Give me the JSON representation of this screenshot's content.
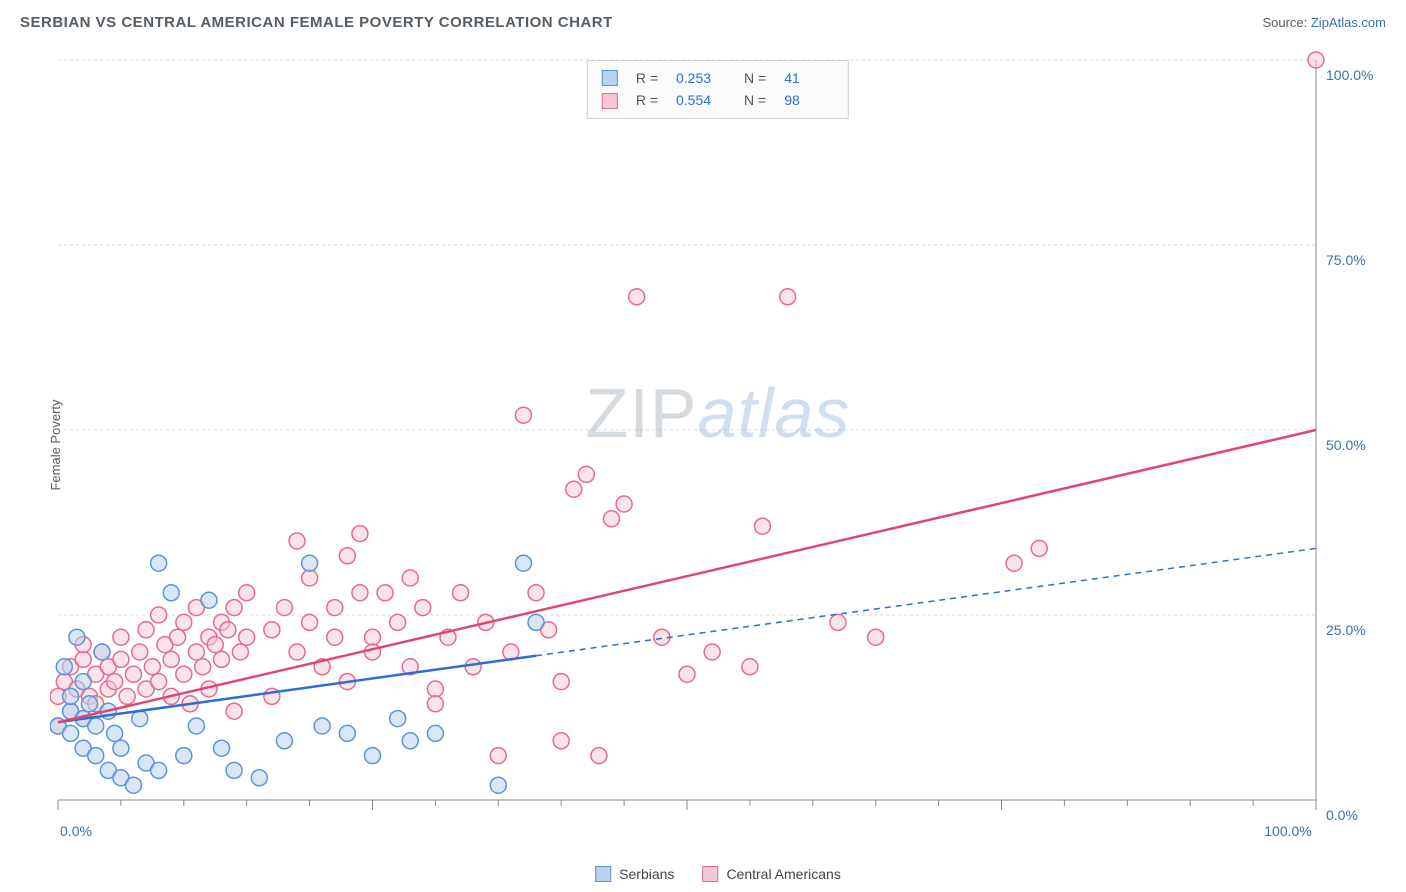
{
  "header": {
    "title": "SERBIAN VS CENTRAL AMERICAN FEMALE POVERTY CORRELATION CHART",
    "source_prefix": "Source: ",
    "source_link": "ZipAtlas.com"
  },
  "chart": {
    "type": "scatter",
    "ylabel": "Female Poverty",
    "watermark_zip": "ZIP",
    "watermark_atlas": "atlas",
    "xlim": [
      0,
      100
    ],
    "ylim": [
      0,
      100
    ],
    "xticks_major": [
      0,
      25,
      50,
      75,
      100
    ],
    "xticks_minor_step": 5,
    "yticks": [
      0,
      25,
      50,
      75,
      100
    ],
    "ytick_labels": [
      "0.0%",
      "25.0%",
      "50.0%",
      "75.0%",
      "100.0%"
    ],
    "xtick_labels_shown": {
      "0": "0.0%",
      "100": "100.0%"
    },
    "background_color": "#ffffff",
    "grid_color": "#d8d8d8",
    "grid_dash": "3,3",
    "axis_color": "#888888",
    "tick_label_color": "#3a6fb0",
    "marker_radius": 8,
    "marker_stroke_width": 1.5,
    "series": {
      "serbians": {
        "name": "Serbians",
        "fill": "#b9d2ef",
        "stroke": "#5a95d8",
        "fill_opacity": 0.55,
        "R": "0.253",
        "N": "41",
        "regression": {
          "x1": 0,
          "y1": 10.5,
          "x2": 38,
          "y2": 19.5,
          "extend_to_x": 100,
          "extend_y": 34,
          "color": "#2e6cd6",
          "width": 2.5,
          "dash_after": true
        },
        "points": [
          [
            0,
            10
          ],
          [
            0.5,
            18
          ],
          [
            1,
            12
          ],
          [
            1,
            14
          ],
          [
            1,
            9
          ],
          [
            1.5,
            22
          ],
          [
            2,
            11
          ],
          [
            2,
            7
          ],
          [
            2,
            16
          ],
          [
            2.5,
            13
          ],
          [
            3,
            10
          ],
          [
            3,
            6
          ],
          [
            3.5,
            20
          ],
          [
            4,
            12
          ],
          [
            4,
            4
          ],
          [
            4.5,
            9
          ],
          [
            5,
            7
          ],
          [
            5,
            3
          ],
          [
            6,
            2
          ],
          [
            6.5,
            11
          ],
          [
            7,
            5
          ],
          [
            8,
            4
          ],
          [
            8,
            32
          ],
          [
            9,
            28
          ],
          [
            10,
            6
          ],
          [
            11,
            10
          ],
          [
            12,
            27
          ],
          [
            13,
            7
          ],
          [
            14,
            4
          ],
          [
            16,
            3
          ],
          [
            18,
            8
          ],
          [
            20,
            32
          ],
          [
            21,
            10
          ],
          [
            23,
            9
          ],
          [
            25,
            6
          ],
          [
            27,
            11
          ],
          [
            28,
            8
          ],
          [
            30,
            9
          ],
          [
            35,
            2
          ],
          [
            37,
            32
          ],
          [
            38,
            24
          ]
        ]
      },
      "central_americans": {
        "name": "Central Americans",
        "fill": "#f5c7d4",
        "stroke": "#e46b8f",
        "fill_opacity": 0.5,
        "R": "0.554",
        "N": "98",
        "regression": {
          "x1": 0,
          "y1": 10.5,
          "x2": 100,
          "y2": 50,
          "color": "#e0476e",
          "width": 2.5,
          "dash_after": false
        },
        "points": [
          [
            0,
            10
          ],
          [
            0,
            14
          ],
          [
            0.5,
            16
          ],
          [
            1,
            12
          ],
          [
            1,
            18
          ],
          [
            1.5,
            15
          ],
          [
            2,
            11
          ],
          [
            2,
            19
          ],
          [
            2,
            21
          ],
          [
            2.5,
            14
          ],
          [
            3,
            17
          ],
          [
            3,
            13
          ],
          [
            3.5,
            20
          ],
          [
            4,
            15
          ],
          [
            4,
            18
          ],
          [
            4.5,
            16
          ],
          [
            5,
            19
          ],
          [
            5,
            22
          ],
          [
            5.5,
            14
          ],
          [
            6,
            17
          ],
          [
            6.5,
            20
          ],
          [
            7,
            15
          ],
          [
            7,
            23
          ],
          [
            7.5,
            18
          ],
          [
            8,
            16
          ],
          [
            8,
            25
          ],
          [
            8.5,
            21
          ],
          [
            9,
            14
          ],
          [
            9,
            19
          ],
          [
            9.5,
            22
          ],
          [
            10,
            17
          ],
          [
            10,
            24
          ],
          [
            10.5,
            13
          ],
          [
            11,
            20
          ],
          [
            11,
            26
          ],
          [
            11.5,
            18
          ],
          [
            12,
            22
          ],
          [
            12,
            15
          ],
          [
            12.5,
            21
          ],
          [
            13,
            24
          ],
          [
            13,
            19
          ],
          [
            13.5,
            23
          ],
          [
            14,
            12
          ],
          [
            14,
            26
          ],
          [
            14.5,
            20
          ],
          [
            15,
            22
          ],
          [
            15,
            28
          ],
          [
            17,
            23
          ],
          [
            17,
            14
          ],
          [
            18,
            26
          ],
          [
            19,
            20
          ],
          [
            19,
            35
          ],
          [
            20,
            24
          ],
          [
            20,
            30
          ],
          [
            21,
            18
          ],
          [
            22,
            26
          ],
          [
            22,
            22
          ],
          [
            23,
            33
          ],
          [
            23,
            16
          ],
          [
            24,
            28
          ],
          [
            24,
            36
          ],
          [
            25,
            22
          ],
          [
            25,
            20
          ],
          [
            26,
            28
          ],
          [
            27,
            24
          ],
          [
            28,
            18
          ],
          [
            28,
            30
          ],
          [
            29,
            26
          ],
          [
            30,
            15
          ],
          [
            30,
            13
          ],
          [
            31,
            22
          ],
          [
            32,
            28
          ],
          [
            33,
            18
          ],
          [
            34,
            24
          ],
          [
            35,
            6
          ],
          [
            36,
            20
          ],
          [
            37,
            52
          ],
          [
            38,
            28
          ],
          [
            39,
            23
          ],
          [
            40,
            16
          ],
          [
            40,
            8
          ],
          [
            41,
            42
          ],
          [
            42,
            44
          ],
          [
            43,
            6
          ],
          [
            44,
            38
          ],
          [
            45,
            40
          ],
          [
            46,
            68
          ],
          [
            48,
            22
          ],
          [
            50,
            17
          ],
          [
            52,
            20
          ],
          [
            55,
            18
          ],
          [
            56,
            37
          ],
          [
            58,
            68
          ],
          [
            62,
            24
          ],
          [
            65,
            22
          ],
          [
            76,
            32
          ],
          [
            78,
            34
          ],
          [
            100,
            100
          ]
        ]
      }
    },
    "legend_top": {
      "r_label": "R =",
      "n_label": "N ="
    },
    "legend_bottom": {
      "serbians": "Serbians",
      "central_americans": "Central Americans"
    }
  }
}
